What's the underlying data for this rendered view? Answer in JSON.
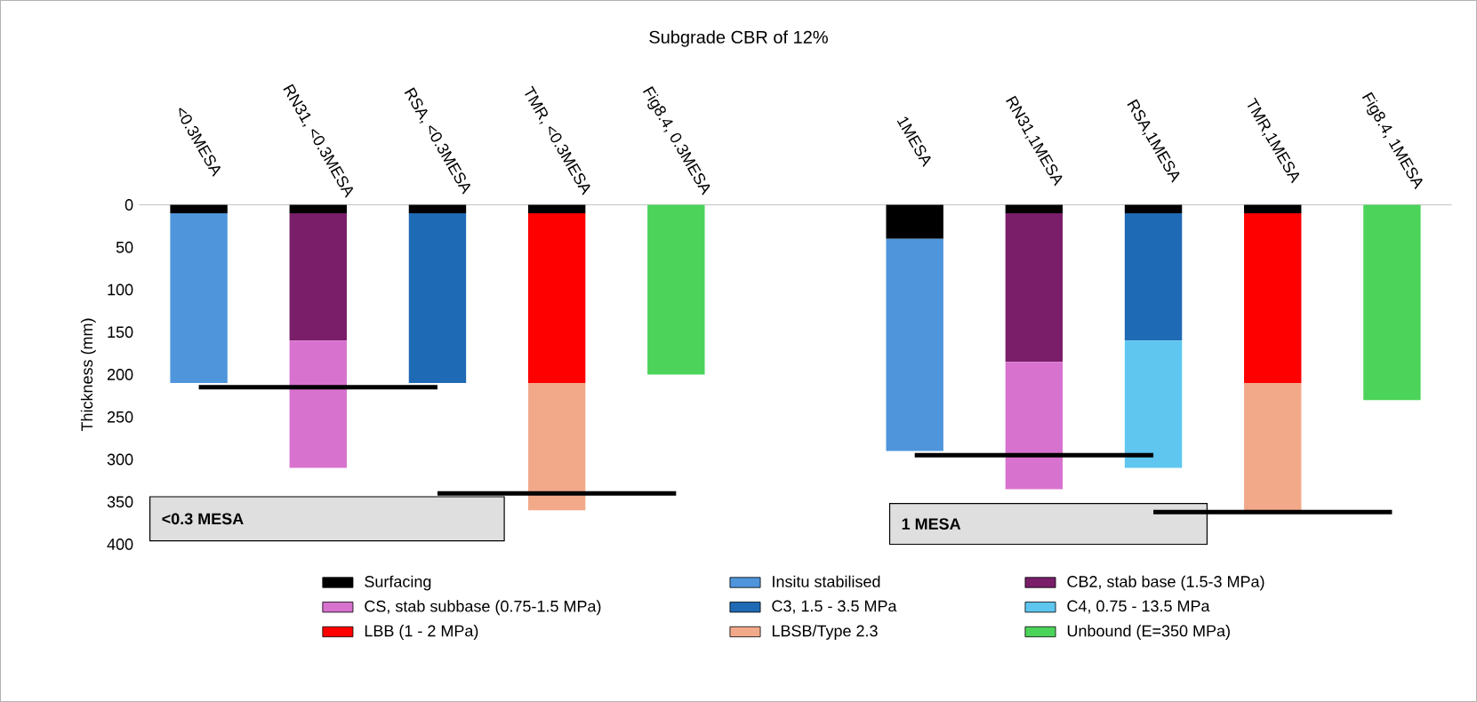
{
  "chart_data": {
    "type": "bar",
    "title": "Subgrade CBR of 12%",
    "ylabel": "Thickness (mm)",
    "stacked": true,
    "legend": "bottom",
    "categories": [
      "<0.3MESA",
      "RN31, <0.3MESA",
      "RSA, <0.3MESA",
      "TMR, <0.3MESA",
      "Fig8.4, 0.3MESA",
      null,
      "1MESA",
      "RN31,1MESA",
      "RSA,1MESA",
      "TMR,1MESA",
      "Fig8.4, 1MESA"
    ],
    "ylim": [
      400,
      0
    ],
    "yticks": [
      0,
      50,
      100,
      150,
      200,
      250,
      300,
      350,
      400
    ],
    "series": [
      {
        "name": "Surfacing",
        "color": "#000000",
        "values": [
          10,
          10,
          10,
          10,
          null,
          null,
          40,
          10,
          10,
          10,
          null
        ]
      },
      {
        "name": "Insitu stabilised",
        "color": "#4f95db",
        "values": [
          200,
          null,
          null,
          null,
          null,
          null,
          250,
          null,
          null,
          null,
          null
        ]
      },
      {
        "name": "CB2, stab base (1.5-3 MPa)",
        "color": "#7a1e6a",
        "values": [
          null,
          150,
          null,
          null,
          null,
          null,
          null,
          175,
          null,
          null,
          null
        ]
      },
      {
        "name": "CS, stab subbase (0.75-1.5 MPa)",
        "color": "#d872cf",
        "values": [
          null,
          150,
          null,
          null,
          null,
          null,
          null,
          150,
          null,
          null,
          null
        ]
      },
      {
        "name": "C3, 1.5 - 3.5 MPa",
        "color": "#1f6ab4",
        "values": [
          null,
          null,
          200,
          null,
          null,
          null,
          null,
          null,
          150,
          null,
          null
        ]
      },
      {
        "name": "C4, 0.75 - 13.5 MPa",
        "color": "#5ec6ef",
        "values": [
          null,
          null,
          null,
          null,
          null,
          null,
          null,
          null,
          150,
          null,
          null
        ]
      },
      {
        "name": "LBB (1 - 2 MPa)",
        "color": "#ff0000",
        "values": [
          null,
          null,
          null,
          200,
          null,
          null,
          null,
          null,
          null,
          200,
          null
        ]
      },
      {
        "name": "LBSB/Type 2.3",
        "color": "#f2a98a",
        "values": [
          null,
          null,
          null,
          150,
          null,
          null,
          null,
          null,
          null,
          150,
          null
        ]
      },
      {
        "name": "Unbound (E=350 MPa)",
        "color": "#4cd35a",
        "values": [
          null,
          null,
          null,
          null,
          200,
          null,
          null,
          null,
          null,
          null,
          230
        ]
      },
      {
        "type": "line",
        "color": "#000000",
        "values": [
          215,
          215,
          215,
          null,
          null,
          null,
          null,
          null,
          null,
          null,
          null
        ]
      },
      {
        "type": "line",
        "color": "#000000",
        "values": [
          null,
          null,
          340,
          340,
          340,
          null,
          null,
          null,
          null,
          null,
          null
        ]
      },
      {
        "type": "line",
        "color": "#000000",
        "values": [
          null,
          null,
          null,
          null,
          null,
          null,
          295,
          295,
          295,
          null,
          null
        ]
      },
      {
        "type": "line",
        "color": "#000000",
        "values": [
          null,
          null,
          null,
          null,
          null,
          null,
          null,
          null,
          362,
          362,
          362
        ]
      }
    ],
    "annotations": [
      "<0.3 MESA",
      "1 MESA"
    ]
  }
}
